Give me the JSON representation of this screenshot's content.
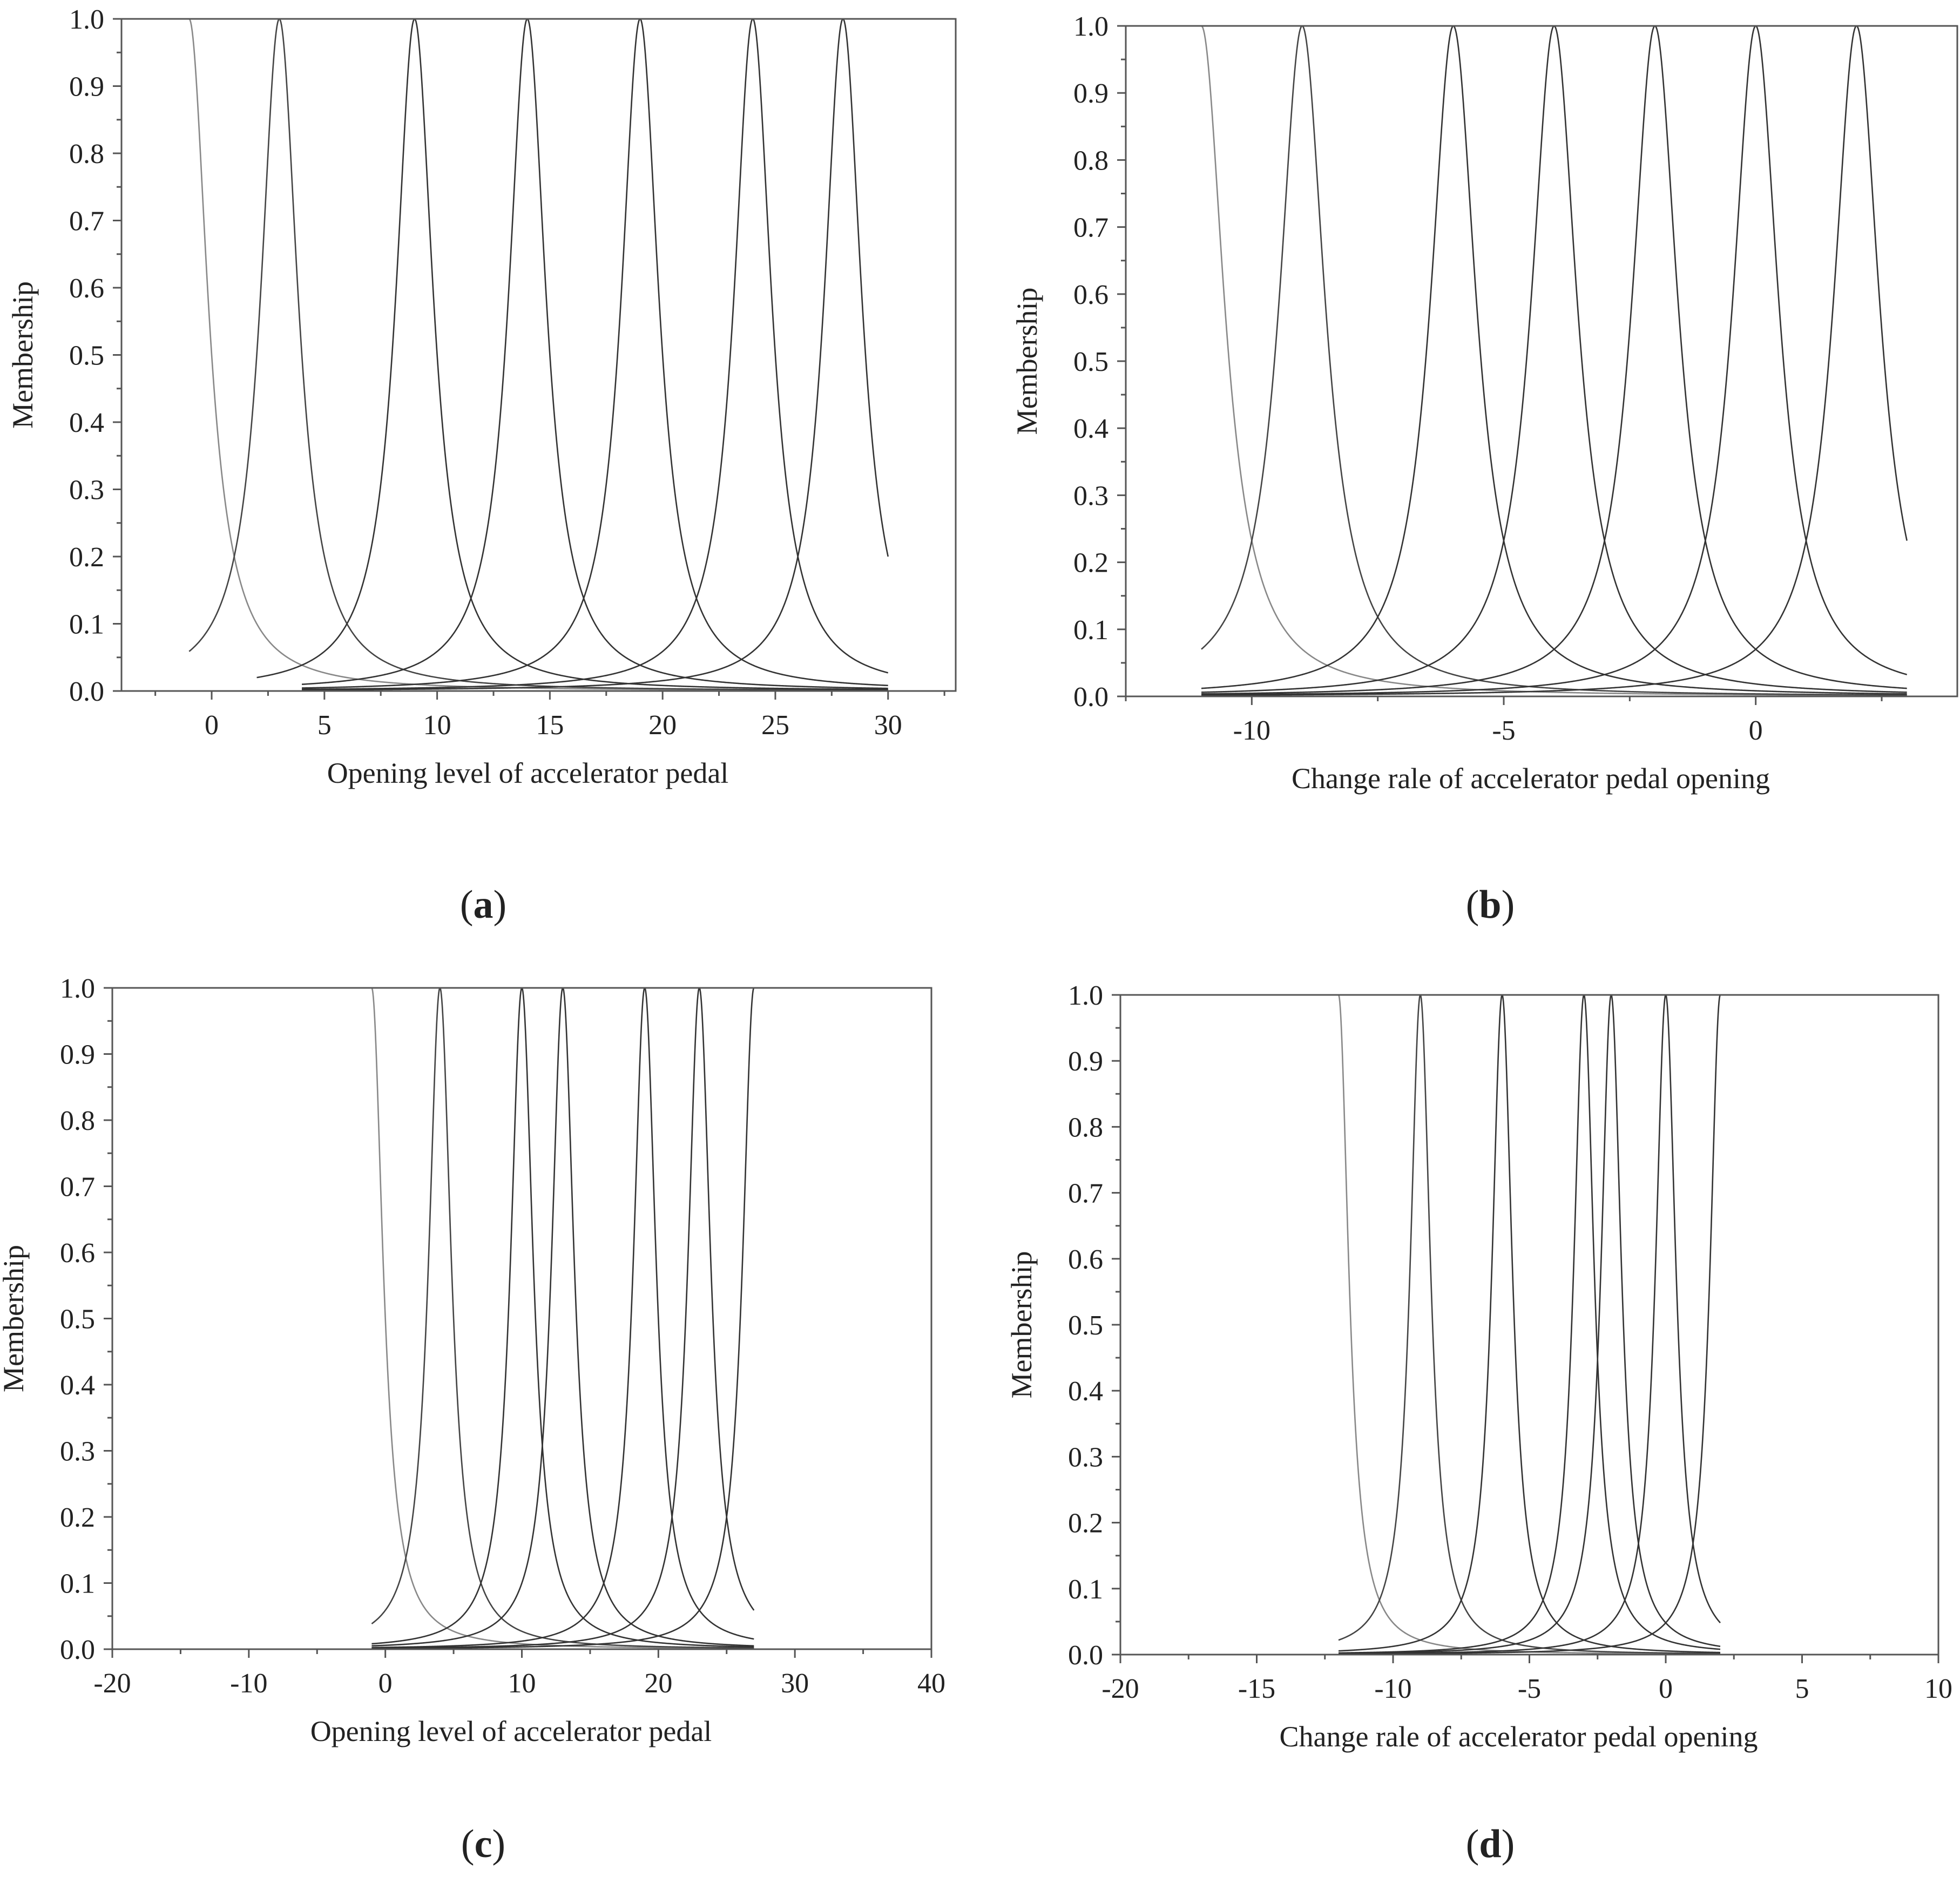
{
  "chart_data": [
    {
      "id": "a",
      "type": "line",
      "caption_letter": "a",
      "xlabel": "Opening level of accelerator pedal",
      "ylabel": "Membership",
      "xlim": [
        -4,
        33
      ],
      "ylim": [
        0,
        1
      ],
      "xticks": [
        0,
        5,
        10,
        15,
        20,
        25,
        30
      ],
      "yticks": [
        0.0,
        0.1,
        0.2,
        0.3,
        0.4,
        0.5,
        0.6,
        0.7,
        0.8,
        0.9,
        1.0
      ],
      "grid": false,
      "curve_shape": "cauchy",
      "series": [
        {
          "center": -1,
          "width": 1.0,
          "domain": [
            -1,
            30
          ],
          "color": "#888888"
        },
        {
          "center": 3,
          "width": 1.0,
          "domain": [
            -1,
            30
          ],
          "color": "#444444"
        },
        {
          "center": 9,
          "width": 1.0,
          "domain": [
            2,
            30
          ],
          "color": "#333333"
        },
        {
          "center": 14,
          "width": 1.0,
          "domain": [
            4,
            30
          ],
          "color": "#333333"
        },
        {
          "center": 19,
          "width": 1.0,
          "domain": [
            4,
            30
          ],
          "color": "#333333"
        },
        {
          "center": 24,
          "width": 1.0,
          "domain": [
            4,
            30
          ],
          "color": "#333333"
        },
        {
          "center": 28,
          "width": 1.0,
          "domain": [
            4,
            30
          ],
          "color": "#333333"
        }
      ]
    },
    {
      "id": "b",
      "type": "line",
      "caption_letter": "b",
      "xlabel": "Change rale of accelerator pedal opening",
      "ylabel": "Membership",
      "xlim": [
        -12.5,
        4
      ],
      "ylim": [
        0,
        1
      ],
      "xticks": [
        -10,
        -5,
        0
      ],
      "yticks": [
        0.0,
        0.1,
        0.2,
        0.3,
        0.4,
        0.5,
        0.6,
        0.7,
        0.8,
        0.9,
        1.0
      ],
      "grid": false,
      "curve_shape": "cauchy",
      "series": [
        {
          "center": -11,
          "width": 0.55,
          "domain": [
            -11,
            3
          ],
          "color": "#888888"
        },
        {
          "center": -9,
          "width": 0.55,
          "domain": [
            -11,
            3
          ],
          "color": "#444444"
        },
        {
          "center": -6,
          "width": 0.55,
          "domain": [
            -11,
            3
          ],
          "color": "#333333"
        },
        {
          "center": -4,
          "width": 0.55,
          "domain": [
            -11,
            3
          ],
          "color": "#333333"
        },
        {
          "center": -2,
          "width": 0.55,
          "domain": [
            -11,
            3
          ],
          "color": "#333333"
        },
        {
          "center": 0,
          "width": 0.55,
          "domain": [
            -11,
            3
          ],
          "color": "#333333"
        },
        {
          "center": 2,
          "width": 0.55,
          "domain": [
            -11,
            3
          ],
          "color": "#333333"
        }
      ]
    },
    {
      "id": "c",
      "type": "line",
      "caption_letter": "c",
      "xlabel": "Opening level of accelerator pedal",
      "ylabel": "Membership",
      "xlim": [
        -20,
        40
      ],
      "ylim": [
        0,
        1
      ],
      "xticks": [
        -20,
        -10,
        0,
        10,
        20,
        30,
        40
      ],
      "yticks": [
        0.0,
        0.1,
        0.2,
        0.3,
        0.4,
        0.5,
        0.6,
        0.7,
        0.8,
        0.9,
        1.0
      ],
      "grid": false,
      "curve_shape": "cauchy",
      "series": [
        {
          "center": -1,
          "width": 1.0,
          "domain": [
            -1,
            27
          ],
          "color": "#888888"
        },
        {
          "center": 4,
          "width": 1.0,
          "domain": [
            -1,
            27
          ],
          "color": "#444444"
        },
        {
          "center": 10,
          "width": 1.0,
          "domain": [
            -1,
            27
          ],
          "color": "#333333"
        },
        {
          "center": 13,
          "width": 1.0,
          "domain": [
            -1,
            27
          ],
          "color": "#333333"
        },
        {
          "center": 19,
          "width": 1.0,
          "domain": [
            -1,
            27
          ],
          "color": "#333333"
        },
        {
          "center": 23,
          "width": 1.0,
          "domain": [
            -1,
            27
          ],
          "color": "#333333"
        },
        {
          "center": 27,
          "width": 1.0,
          "domain": [
            -1,
            27
          ],
          "color": "#333333"
        }
      ]
    },
    {
      "id": "d",
      "type": "line",
      "caption_letter": "d",
      "xlabel": "Change rale of accelerator pedal opening",
      "ylabel": "Membership",
      "xlim": [
        -20,
        10
      ],
      "ylim": [
        0,
        1
      ],
      "xticks": [
        -20,
        -15,
        -10,
        -5,
        0,
        5,
        10
      ],
      "yticks": [
        0.0,
        0.1,
        0.2,
        0.3,
        0.4,
        0.5,
        0.6,
        0.7,
        0.8,
        0.9,
        1.0
      ],
      "grid": false,
      "curve_shape": "cauchy",
      "series": [
        {
          "center": -12,
          "width": 0.45,
          "domain": [
            -12,
            2
          ],
          "color": "#888888"
        },
        {
          "center": -9,
          "width": 0.45,
          "domain": [
            -12,
            2
          ],
          "color": "#444444"
        },
        {
          "center": -6,
          "width": 0.45,
          "domain": [
            -12,
            2
          ],
          "color": "#333333"
        },
        {
          "center": -3,
          "width": 0.45,
          "domain": [
            -12,
            2
          ],
          "color": "#333333"
        },
        {
          "center": -2,
          "width": 0.45,
          "domain": [
            -12,
            2
          ],
          "color": "#333333"
        },
        {
          "center": 0,
          "width": 0.45,
          "domain": [
            -12,
            2
          ],
          "color": "#333333"
        },
        {
          "center": 2,
          "width": 0.45,
          "domain": [
            -12,
            2
          ],
          "color": "#333333"
        }
      ]
    }
  ]
}
